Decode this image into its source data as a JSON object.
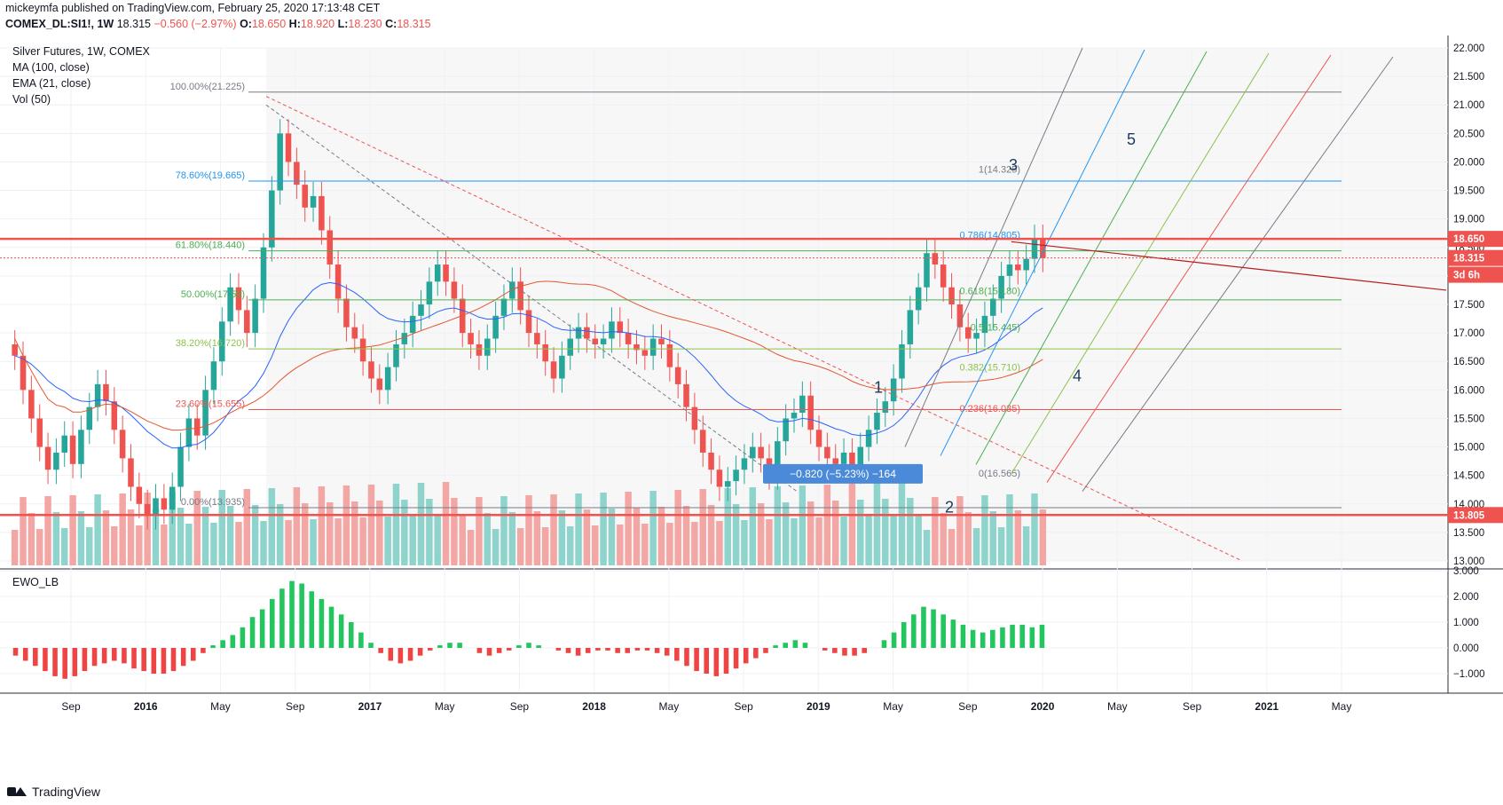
{
  "header": {
    "line1": "mickeymfa published on TradingView.com, February 25, 2020 17:13:48 CET",
    "symbol": "COMEX_DL:SI1!, 1W",
    "price": "18.315",
    "change": "−0.560 (−2.97%)",
    "ohlc": {
      "O": "18.650",
      "H": "18.920",
      "L": "18.230",
      "C": "18.315"
    }
  },
  "legend": [
    "Silver Futures, 1W, COMEX",
    "MA (100, close)",
    "EMA (21, close)",
    "Vol (50)"
  ],
  "indicator_label": "EWO_LB",
  "footer": {
    "brand": "TradingView"
  },
  "chart_data": {
    "type": "candlestick",
    "y_axis": {
      "min": 13.0,
      "max": 22.0,
      "step": 0.5,
      "side": "right"
    },
    "ewo_axis": {
      "ticks": [
        3.0,
        2.0,
        1.0,
        0.0,
        -1.0
      ]
    },
    "x_labels": [
      "Sep",
      "2016",
      "May",
      "Sep",
      "2017",
      "May",
      "Sep",
      "2018",
      "May",
      "Sep",
      "2019",
      "May",
      "Sep",
      "2020",
      "May",
      "Sep",
      "2021",
      "May"
    ],
    "price_tags": [
      {
        "value": 18.65,
        "label": "18.650",
        "color": "#ef5350"
      },
      {
        "value": 18.315,
        "label": "18.315",
        "color": "#ef5350"
      },
      {
        "value": 18.02,
        "label": "3d 6h",
        "color": "#ef5350"
      },
      {
        "value": 13.805,
        "label": "13.805",
        "color": "#ef5350"
      }
    ],
    "fib_left": [
      {
        "label": "100.00%(21.225)",
        "value": 21.225,
        "color": "#787b86"
      },
      {
        "label": "78.60%(19.665)",
        "value": 19.665,
        "color": "#2196f3"
      },
      {
        "label": "61.80%(18.440)",
        "value": 18.44,
        "color": "#4caf50"
      },
      {
        "label": "50.00%(17.58)",
        "value": 17.58,
        "color": "#4caf50"
      },
      {
        "label": "38.20%(16.720)",
        "value": 16.72,
        "color": "#8bc34a"
      },
      {
        "label": "23.60%(15.655)",
        "value": 15.655,
        "color": "#ef5350"
      },
      {
        "label": "0.00%(13.935)",
        "value": 13.935,
        "color": "#787b86"
      }
    ],
    "fib_right": [
      {
        "label": "1(14.325)",
        "value": 19.75,
        "color": "#787b86"
      },
      {
        "label": "0.786(14.805)",
        "value": 18.6,
        "color": "#2196f3"
      },
      {
        "label": "0.618(15.180)",
        "value": 17.62,
        "color": "#4caf50"
      },
      {
        "label": "0.5(15.445)",
        "value": 16.98,
        "color": "#4caf50"
      },
      {
        "label": "0.382(15.710)",
        "value": 16.28,
        "color": "#8bc34a"
      },
      {
        "label": "0.236(16.035)",
        "value": 15.55,
        "color": "#ef5350"
      },
      {
        "label": "0(16.565)",
        "value": 14.42,
        "color": "#787b86"
      }
    ],
    "waves": [
      "1",
      "2",
      "3",
      "4",
      "5"
    ],
    "measure": {
      "label": "−0.820 (−5.23%) −164"
    },
    "series_closes": [
      16.6,
      16.0,
      15.5,
      15.0,
      14.6,
      14.9,
      15.2,
      14.7,
      15.3,
      15.7,
      16.1,
      15.8,
      15.3,
      14.8,
      14.3,
      14.0,
      13.8,
      14.1,
      13.9,
      14.3,
      15.0,
      15.5,
      15.2,
      16.0,
      16.5,
      17.2,
      17.8,
      17.4,
      17.0,
      17.6,
      18.5,
      19.5,
      20.5,
      20.0,
      19.6,
      19.2,
      19.4,
      18.8,
      18.2,
      17.6,
      17.1,
      16.9,
      16.5,
      16.2,
      16.0,
      16.4,
      16.8,
      17.0,
      17.3,
      17.5,
      17.9,
      18.2,
      17.9,
      17.6,
      17.0,
      16.8,
      16.6,
      16.9,
      17.3,
      17.6,
      17.9,
      17.4,
      17.0,
      16.8,
      16.5,
      16.2,
      16.6,
      16.9,
      17.1,
      16.9,
      16.8,
      16.9,
      17.2,
      17.0,
      16.8,
      16.7,
      16.6,
      16.9,
      16.8,
      16.4,
      16.1,
      15.7,
      15.3,
      14.9,
      14.6,
      14.3,
      14.4,
      14.6,
      14.8,
      15.0,
      14.8,
      14.5,
      15.1,
      15.5,
      15.6,
      15.9,
      15.3,
      15.0,
      14.8,
      14.7,
      14.9,
      14.6,
      15.0,
      15.3,
      15.6,
      15.8,
      16.2,
      16.8,
      17.4,
      17.8,
      18.4,
      18.2,
      17.8,
      17.5,
      17.1,
      16.9,
      17.0,
      17.3,
      17.6,
      18.0,
      18.2,
      18.1,
      18.3,
      18.65,
      18.315
    ],
    "ewo_values": [
      -0.3,
      -0.5,
      -0.7,
      -0.9,
      -1.1,
      -1.2,
      -1.1,
      -0.9,
      -0.7,
      -0.6,
      -0.5,
      -0.6,
      -0.8,
      -0.9,
      -1.0,
      -1.0,
      -0.9,
      -0.7,
      -0.5,
      -0.2,
      0.1,
      0.3,
      0.5,
      0.8,
      1.2,
      1.5,
      1.9,
      2.3,
      2.6,
      2.5,
      2.2,
      1.9,
      1.6,
      1.3,
      1.0,
      0.6,
      0.2,
      -0.2,
      -0.5,
      -0.6,
      -0.5,
      -0.3,
      -0.1,
      0.1,
      0.2,
      0.2,
      0.0,
      -0.2,
      -0.3,
      -0.2,
      -0.1,
      0.1,
      0.2,
      0.1,
      0.0,
      -0.1,
      -0.2,
      -0.3,
      -0.2,
      -0.1,
      -0.1,
      -0.2,
      -0.2,
      -0.1,
      -0.1,
      -0.2,
      -0.3,
      -0.5,
      -0.7,
      -0.9,
      -1.0,
      -1.1,
      -1.0,
      -0.8,
      -0.6,
      -0.4,
      -0.2,
      0.1,
      0.2,
      0.3,
      0.2,
      0.0,
      -0.1,
      -0.2,
      -0.3,
      -0.3,
      -0.2,
      0.0,
      0.3,
      0.6,
      1.0,
      1.3,
      1.6,
      1.5,
      1.3,
      1.1,
      0.9,
      0.7,
      0.6,
      0.7,
      0.8,
      0.9,
      0.9,
      0.8,
      0.9
    ]
  }
}
